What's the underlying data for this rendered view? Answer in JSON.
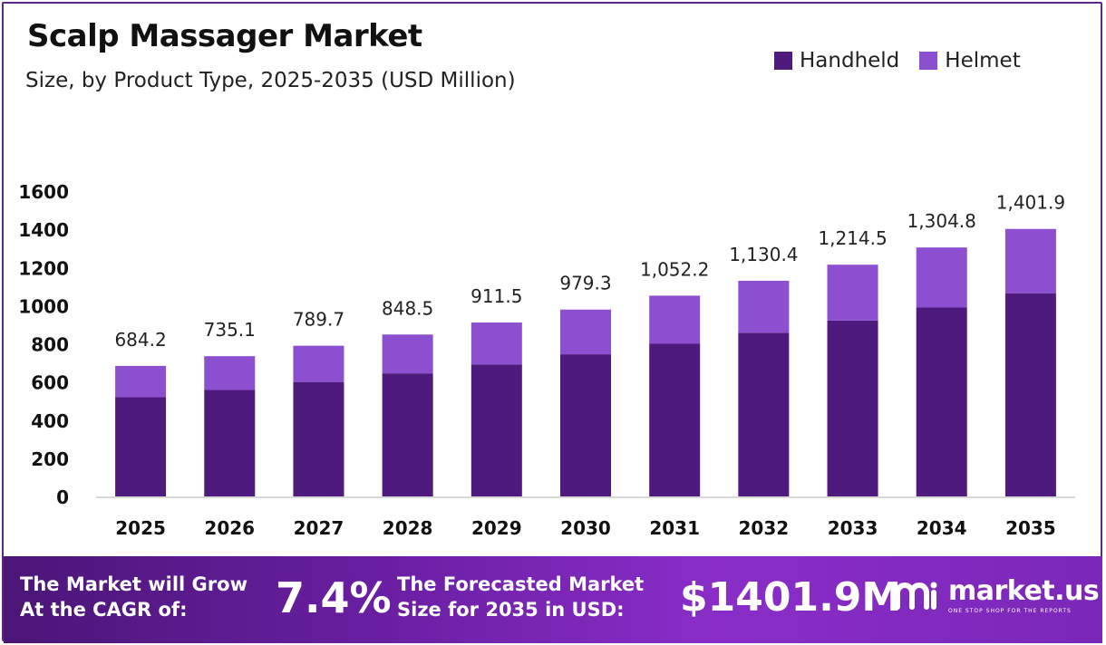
{
  "title": "Scalp Massager Market",
  "subtitle": "Size, by Product Type, 2025-2035 (USD Million)",
  "legend": [
    {
      "name": "Handheld",
      "color": "#4e1a7e"
    },
    {
      "name": "Helmet",
      "color": "#8c4fd0"
    }
  ],
  "chart_data": {
    "type": "bar",
    "stacked": true,
    "categories": [
      "2025",
      "2026",
      "2027",
      "2028",
      "2029",
      "2030",
      "2031",
      "2032",
      "2033",
      "2034",
      "2035"
    ],
    "series": [
      {
        "name": "Handheld",
        "color": "#4e1a7e",
        "values": [
          520,
          558,
          600,
          645,
          692,
          745,
          800,
          858,
          922,
          990,
          1065
        ]
      },
      {
        "name": "Helmet",
        "color": "#8c4fd0",
        "values": [
          164.2,
          177.1,
          189.7,
          203.5,
          219.5,
          234.3,
          252.2,
          272.4,
          292.5,
          314.8,
          336.9
        ]
      }
    ],
    "totals": [
      684.2,
      735.1,
      789.7,
      848.5,
      911.5,
      979.3,
      1052.2,
      1130.4,
      1214.5,
      1304.8,
      1401.9
    ],
    "total_labels": [
      "684.2",
      "735.1",
      "789.7",
      "848.5",
      "911.5",
      "979.3",
      "1,052.2",
      "1,130.4",
      "1,214.5",
      "1,304.8",
      "1,401.9"
    ],
    "y_ticks": [
      0,
      200,
      400,
      600,
      800,
      1000,
      1200,
      1400,
      1600
    ],
    "ylim": [
      0,
      1600
    ],
    "grid": false,
    "legend_position": "top-right"
  },
  "footer": {
    "cagr_label_line1": "The Market will Grow",
    "cagr_label_line2": "At the CAGR of:",
    "cagr_value": "7.4%",
    "forecast_label_line1": "The Forecasted Market",
    "forecast_label_line2": "Size for 2035 in USD:",
    "forecast_value": "$1401.9M",
    "brand_name": "market.us",
    "brand_tagline": "ONE STOP SHOP FOR THE REPORTS"
  }
}
